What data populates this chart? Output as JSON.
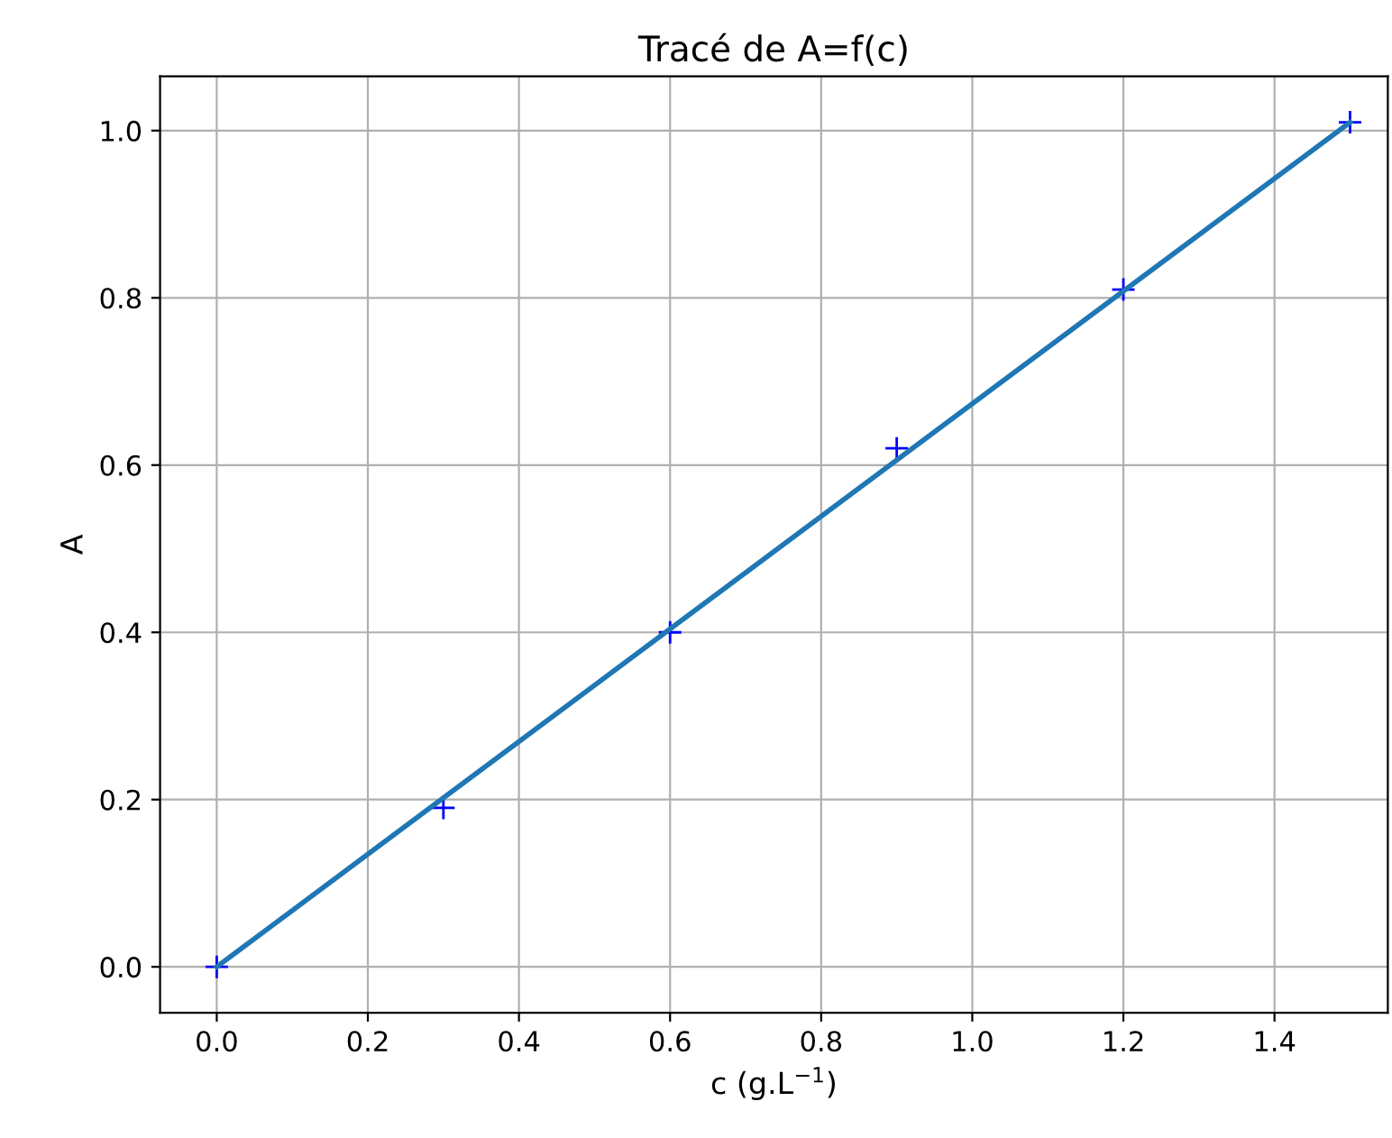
{
  "chart_data": {
    "type": "scatter",
    "title": "Tracé de A=f(c)",
    "xlabel": "c (g.L$^{−1}$)",
    "ylabel": "A",
    "x": [
      0,
      0.3,
      0.6,
      0.9,
      1.2,
      1.5
    ],
    "series": [
      {
        "color": "#0000ff",
        "marker": "cross",
        "values": [
          0,
          0.19,
          0.4,
          0.62,
          0.81,
          1.01
        ]
      },
      {
        "type": "line",
        "color": "#1f77b4",
        "x": [
          0,
          1.5
        ],
        "values": [
          0,
          1.01
        ],
        "line_style": "solid"
      }
    ],
    "xlim": [
      -0.075,
      1.55
    ],
    "ylim": [
      -0.055,
      1.065
    ],
    "xticks": [
      {
        "value": 0,
        "label": "0.0"
      },
      0.2,
      0.4,
      0.6,
      0.8,
      {
        "value": 1,
        "label": "1.0"
      },
      1.2,
      1.4
    ],
    "yticks": [
      {
        "value": 0,
        "label": "0.0"
      },
      0.2,
      0.4,
      0.6,
      0.8,
      {
        "value": 1,
        "label": "1.0"
      }
    ],
    "grid": true,
    "legend": false
  }
}
